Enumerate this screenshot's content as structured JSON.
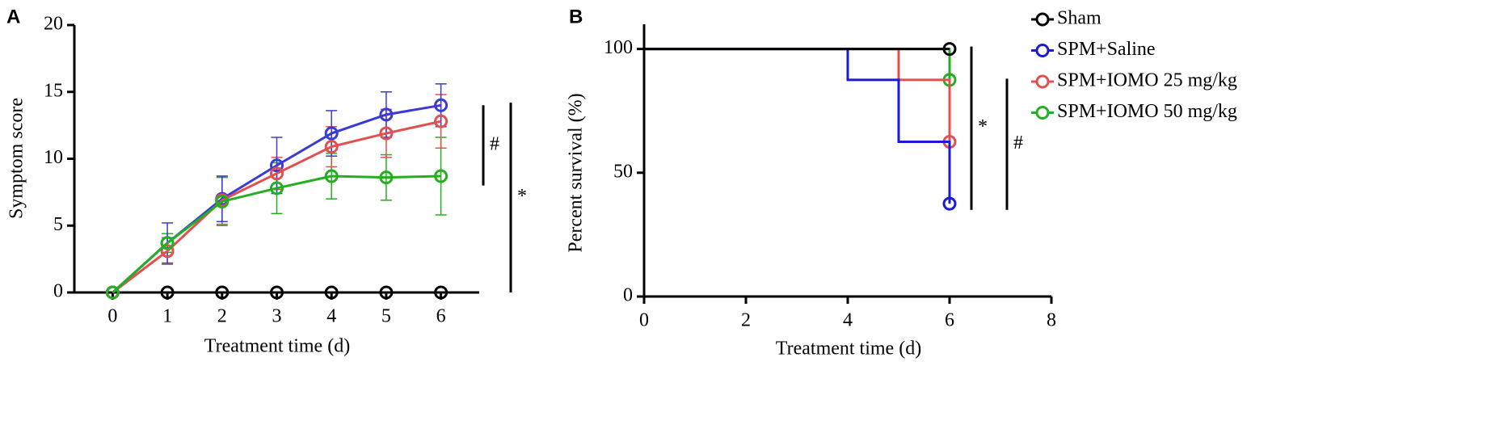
{
  "chart_data": [
    {
      "type": "line",
      "label": "A",
      "x_label": "Treatment time (d)",
      "y_label": "Symptom score",
      "x": [
        0,
        1,
        2,
        3,
        4,
        5,
        6
      ],
      "xlim": [
        -0.7,
        6.7
      ],
      "xticks": [
        0,
        1,
        2,
        3,
        4,
        5,
        6
      ],
      "ylim": [
        0,
        20
      ],
      "yticks": [
        0,
        5,
        10,
        15,
        20
      ],
      "series": [
        {
          "color": "#000000",
          "values": [
            0,
            0,
            0,
            0,
            0,
            0,
            0
          ]
        },
        {
          "color": "#3a3ad6",
          "values": [
            0,
            3.7,
            7.0,
            9.5,
            11.9,
            13.3,
            14.0
          ],
          "errors": [
            0,
            1.5,
            1.7,
            2.1,
            1.7,
            1.7,
            1.6
          ]
        },
        {
          "color": "#e05050",
          "values": [
            0,
            3.1,
            6.9,
            8.9,
            10.9,
            11.9,
            12.8
          ],
          "errors": [
            0,
            1.0,
            1.8,
            1.2,
            1.5,
            1.8,
            2.0
          ]
        },
        {
          "color": "#22b022",
          "values": [
            0,
            3.7,
            6.8,
            7.8,
            8.7,
            8.6,
            8.7
          ],
          "errors": [
            0,
            0.7,
            1.8,
            1.9,
            1.7,
            1.7,
            2.9
          ]
        }
      ],
      "annotations": [
        "#",
        "*"
      ]
    },
    {
      "type": "survival",
      "label": "B",
      "x_label": "Treatment time (d)",
      "y_label": "Percent survival (%)",
      "xlim": [
        0,
        8
      ],
      "xticks": [
        0,
        2,
        4,
        6,
        8
      ],
      "ylim": [
        0,
        110
      ],
      "yticks": [
        0,
        50,
        100
      ],
      "legend": "right",
      "series": [
        {
          "name": "Sham",
          "color": "#000000",
          "x": [
            0,
            6
          ],
          "values": [
            100,
            100
          ]
        },
        {
          "name": "SPM+Saline",
          "color": "#1a1ad6",
          "x": [
            0,
            4,
            5,
            6
          ],
          "values": [
            100,
            87.5,
            62.5,
            37.5
          ]
        },
        {
          "name": "SPM+IOMO 25 mg/kg",
          "color": "#e05050",
          "x": [
            0,
            5,
            6
          ],
          "values": [
            100,
            87.5,
            62.5
          ]
        },
        {
          "name": "SPM+IOMO 50 mg/kg",
          "color": "#22b022",
          "x": [
            0,
            6
          ],
          "values": [
            100,
            87.5
          ]
        }
      ],
      "annotations": [
        "*",
        "#"
      ]
    }
  ]
}
